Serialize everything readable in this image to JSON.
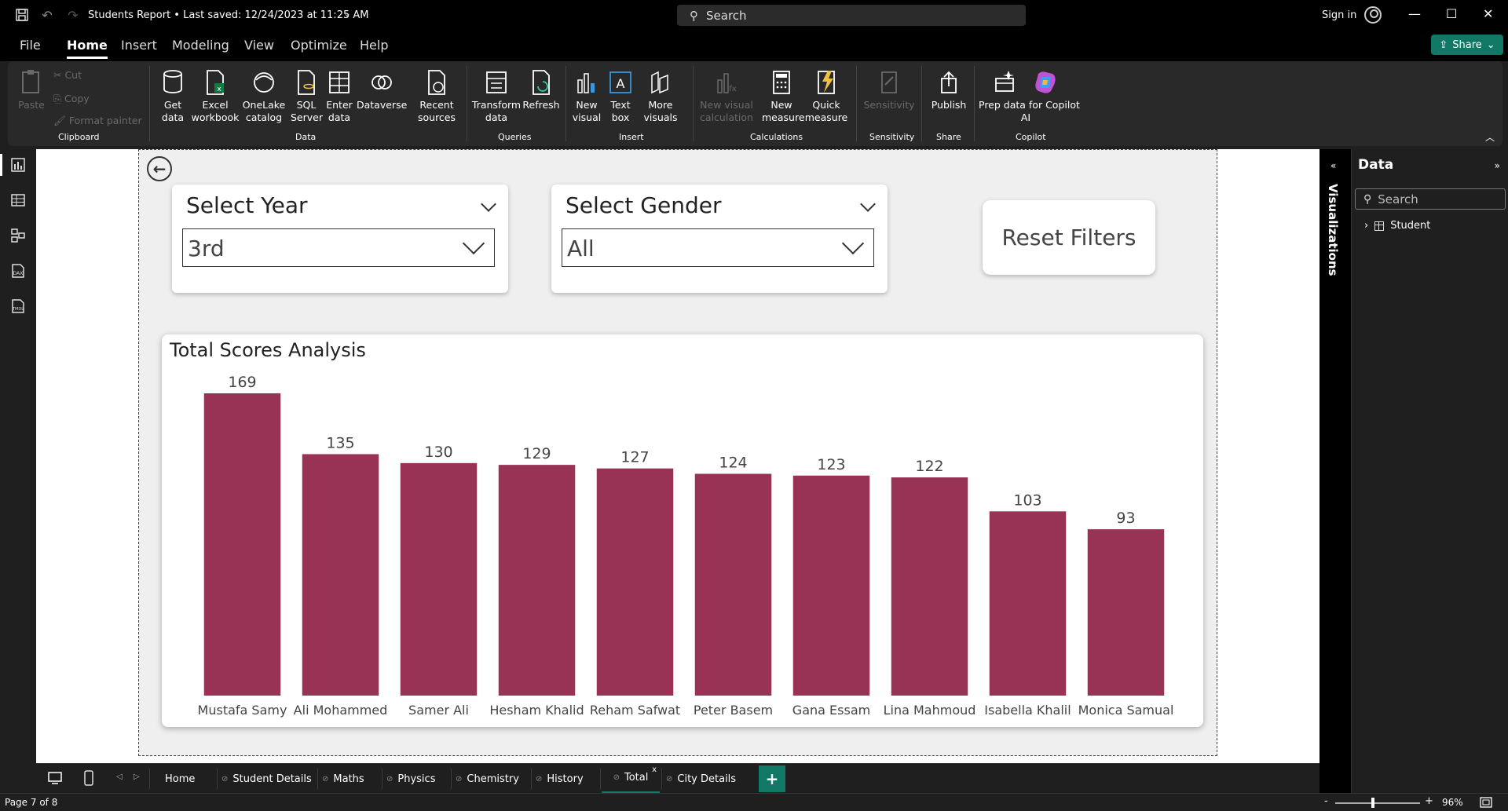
{
  "titlebar": {
    "doc_title": "Students Report • Last saved: 12/24/2023 at 11:25 AM",
    "search_label": "Search",
    "signin_label": "Sign in"
  },
  "menu": {
    "items": [
      "File",
      "Home",
      "Insert",
      "Modeling",
      "View",
      "Optimize",
      "Help"
    ],
    "active": "Home",
    "share_label": "Share"
  },
  "ribbon": {
    "clipboard": {
      "paste": "Paste",
      "cut": "Cut",
      "copy": "Copy",
      "format_painter": "Format painter",
      "group": "Clipboard"
    },
    "data": {
      "get_data": "Get\ndata",
      "excel": "Excel\nworkbook",
      "onelake": "OneLake\ncatalog",
      "sql": "SQL\nServer",
      "enter": "Enter\ndata",
      "dataverse": "Dataverse",
      "recent": "Recent\nsources",
      "group": "Data"
    },
    "queries": {
      "transform": "Transform\ndata",
      "refresh": "Refresh",
      "group": "Queries"
    },
    "insert": {
      "new_visual": "New\nvisual",
      "text_box": "Text\nbox",
      "more_visuals": "More\nvisuals",
      "group": "Insert"
    },
    "calculations": {
      "new_visual_calc": "New visual\ncalculation",
      "new_measure": "New\nmeasure",
      "quick_measure": "Quick\nmeasure",
      "group": "Calculations"
    },
    "sensitivity": {
      "label": "Sensitivity",
      "group": "Sensitivity"
    },
    "share": {
      "publish": "Publish",
      "group": "Share"
    },
    "copilot": {
      "prep": "Prep data for Copilot\nAI",
      "group": "Copilot"
    }
  },
  "report": {
    "slicer_year": {
      "title": "Select Year",
      "value": "3rd"
    },
    "slicer_gender": {
      "title": "Select Gender",
      "value": "All"
    },
    "reset_label": "Reset Filters",
    "chart_title": "Total Scores Analysis"
  },
  "chart_data": {
    "type": "bar",
    "title": "Total Scores Analysis",
    "categories": [
      "Mustafa Samy",
      "Ali Mohammed",
      "Samer Ali",
      "Hesham Khalid",
      "Reham Safwat",
      "Peter Basem",
      "Gana Essam",
      "Lina Mahmoud",
      "Isabella Khalil",
      "Monica Samual"
    ],
    "values": [
      169,
      135,
      130,
      129,
      127,
      124,
      123,
      122,
      103,
      93
    ],
    "bar_color": "#993355",
    "data_labels": true,
    "ylim": [
      0,
      169
    ]
  },
  "panes": {
    "visualizations_label": "Visualizations",
    "data_title": "Data",
    "data_search": "Search",
    "tree_items": [
      "Student"
    ]
  },
  "tabs": [
    "Home",
    "Student Details",
    "Maths",
    "Physics",
    "Chemistry",
    "History",
    "Total",
    "City Details"
  ],
  "active_tab": "Total",
  "status": {
    "page": "Page 7 of 8",
    "zoom": "96%"
  },
  "colors": {
    "accent": "#117865",
    "bar": "#993355"
  }
}
